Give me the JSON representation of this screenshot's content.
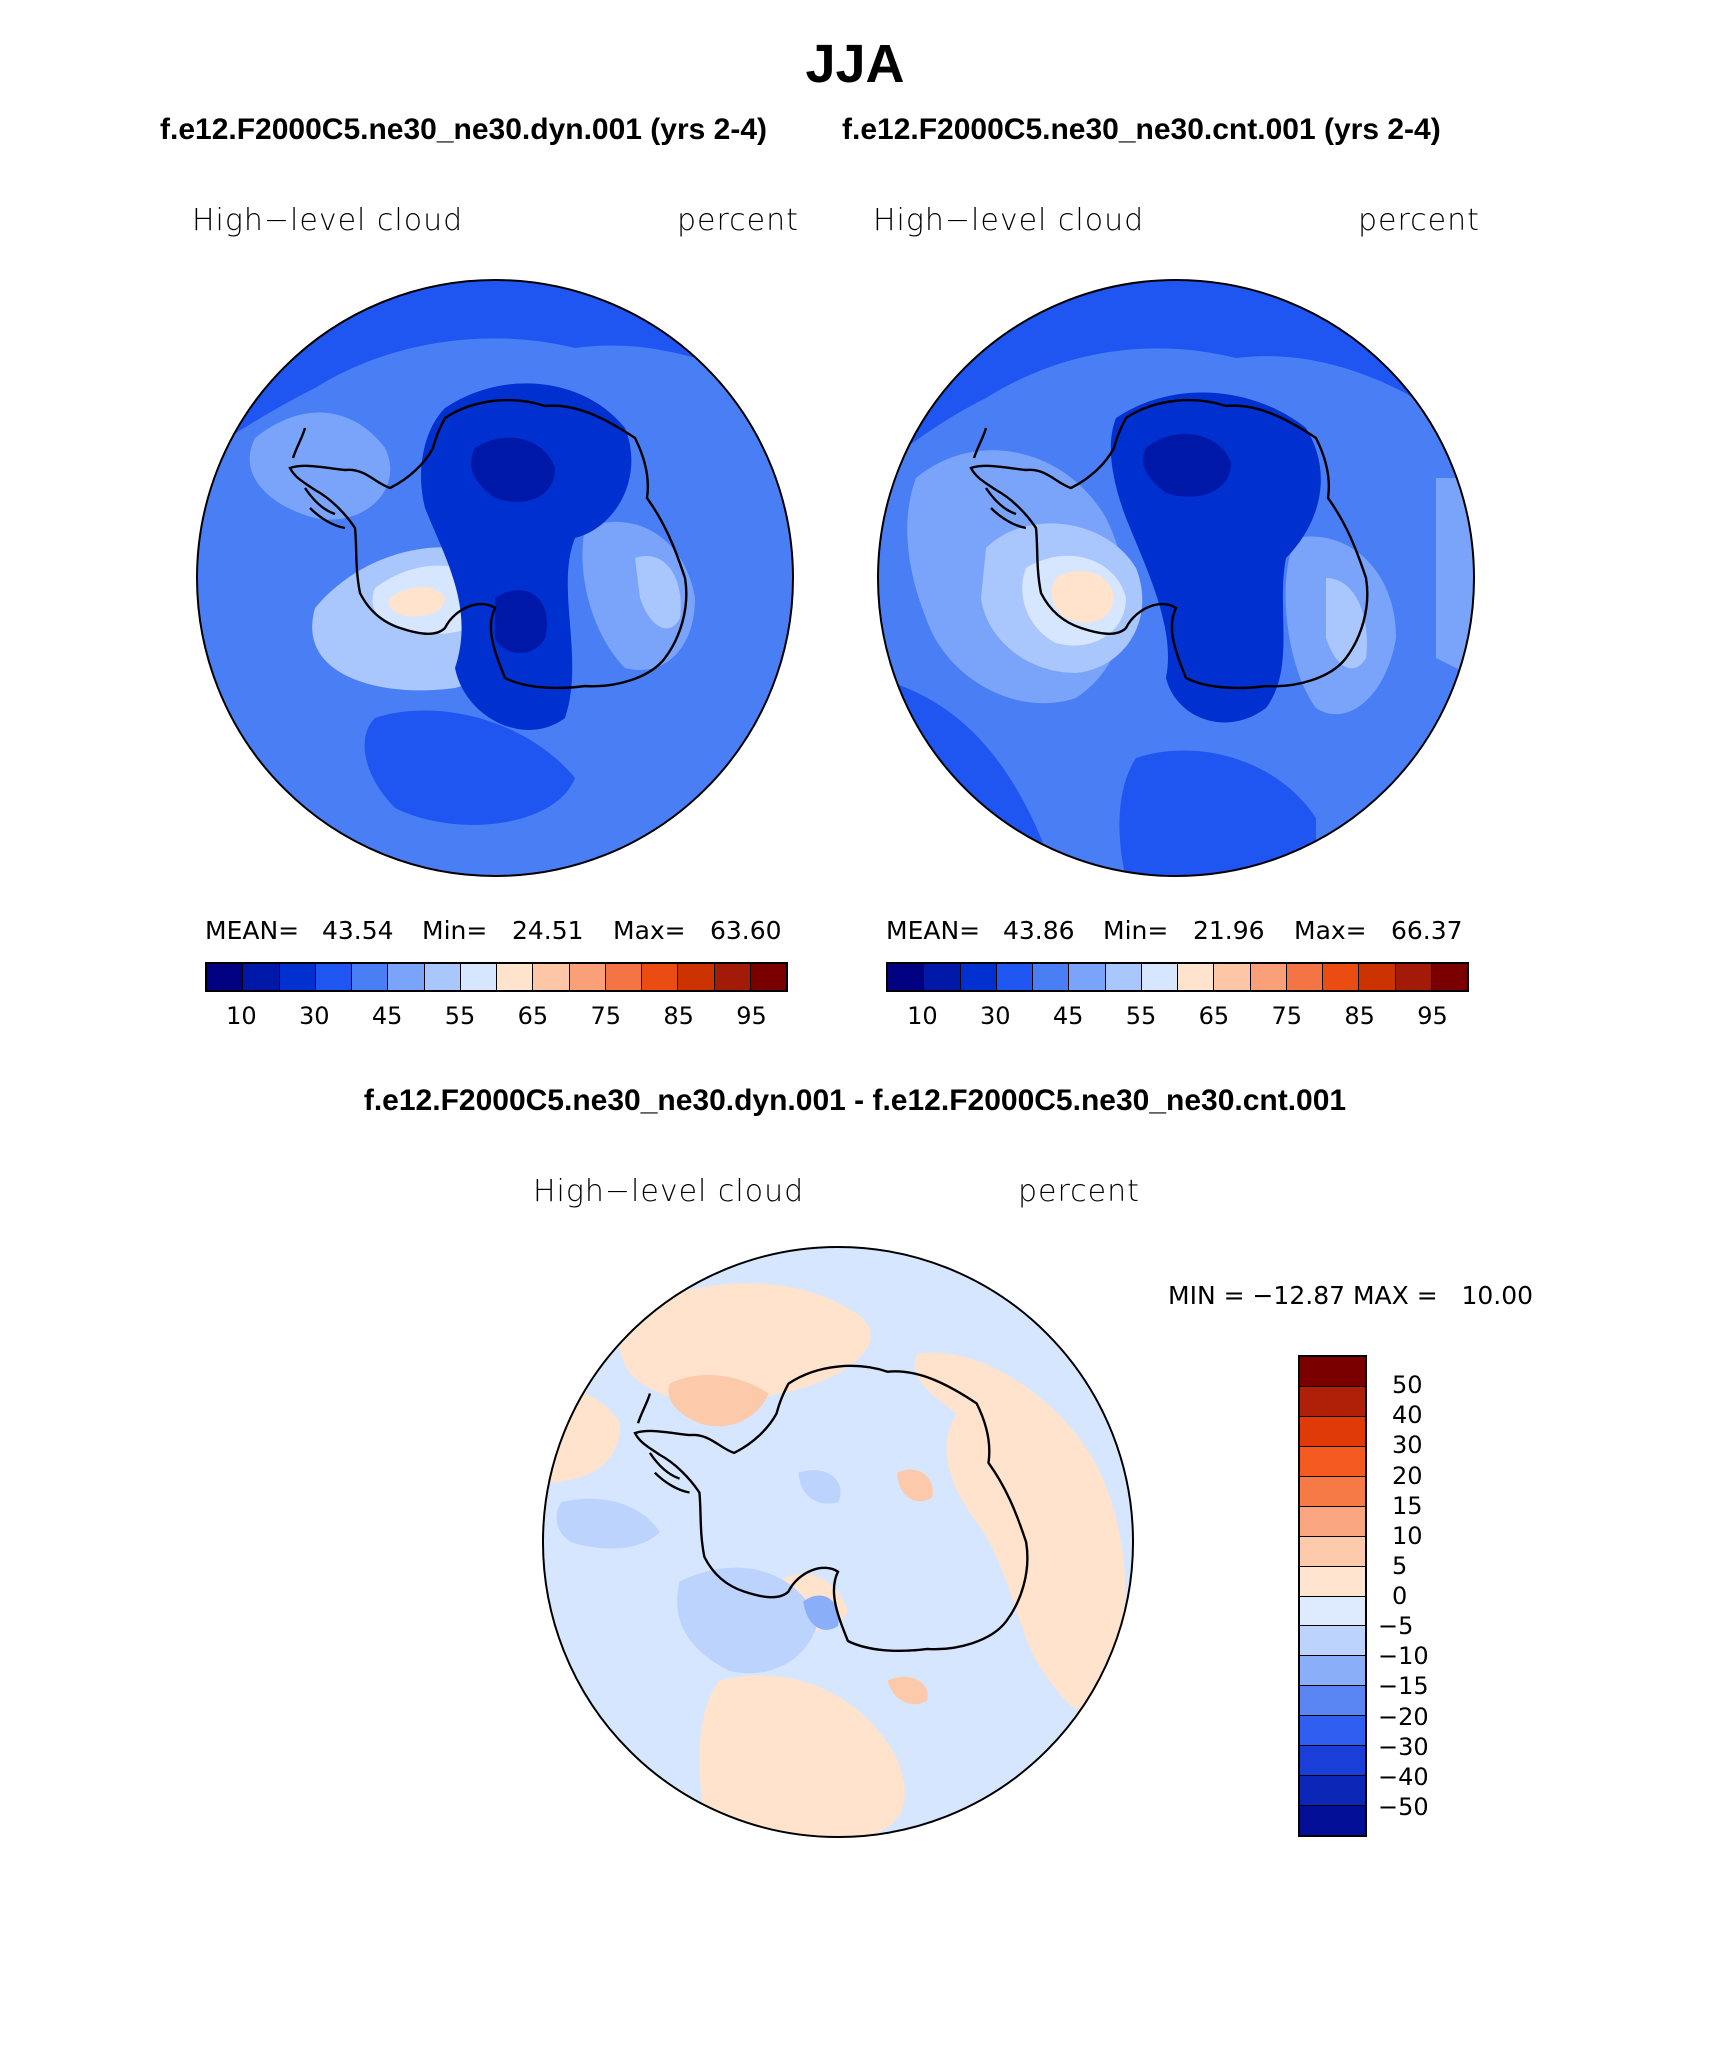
{
  "title": "JJA",
  "top_subtitle_left": "f.e12.F2000C5.ne30_ne30.dyn.001 (yrs 2-4)",
  "top_subtitle_right": "f.e12.F2000C5.ne30_ne30.cnt.001 (yrs 2-4)",
  "diff_subtitle": "f.e12.F2000C5.ne30_ne30.dyn.001 - f.e12.F2000C5.ne30_ne30.cnt.001",
  "panels": [
    {
      "variable": "High−level cloud",
      "units": "percent",
      "stats": {
        "mean_label": "MEAN=",
        "mean": "43.54",
        "min_label": "Min=",
        "min": "24.51",
        "max_label": "Max=",
        "max": "63.60"
      }
    },
    {
      "variable": "High−level cloud",
      "units": "percent",
      "stats": {
        "mean_label": "MEAN=",
        "mean": "43.86",
        "min_label": "Min=",
        "min": "21.96",
        "max_label": "Max=",
        "max": "66.37"
      }
    }
  ],
  "abs_colorbar": {
    "colors": [
      "#000080",
      "#0018a8",
      "#0030d0",
      "#1f55f0",
      "#4a7ef5",
      "#7aa3fa",
      "#a9c6fd",
      "#d6e6ff",
      "#ffe3cc",
      "#fdc6a7",
      "#f9a078",
      "#f57445",
      "#ea4c12",
      "#cc3300",
      "#a31a08",
      "#7a0000"
    ],
    "tick_labels": [
      "10",
      "30",
      "45",
      "55",
      "65",
      "75",
      "85",
      "95"
    ]
  },
  "diff_panel": {
    "variable": "High−level cloud",
    "units": "percent",
    "minmax_text": "MIN = −12.87 MAX =   10.00"
  },
  "diff_colorbar": {
    "colors": [
      "#7a0000",
      "#b02008",
      "#e03a08",
      "#f55a20",
      "#f57a45",
      "#f9a57f",
      "#fdc9ab",
      "#ffe4cf",
      "#deebff",
      "#bcd3fd",
      "#8aaef8",
      "#5a86f3",
      "#2f5ef0",
      "#1a3fd8",
      "#0c26b8",
      "#020f96"
    ],
    "tick_labels": [
      "50",
      "40",
      "30",
      "20",
      "15",
      "10",
      "5",
      "0",
      "−5",
      "−10",
      "−15",
      "−20",
      "−30",
      "−40",
      "−50"
    ]
  },
  "map_colors": {
    "ocean_base": "#4a7ef5",
    "diff_base": "#d6e6ff"
  }
}
